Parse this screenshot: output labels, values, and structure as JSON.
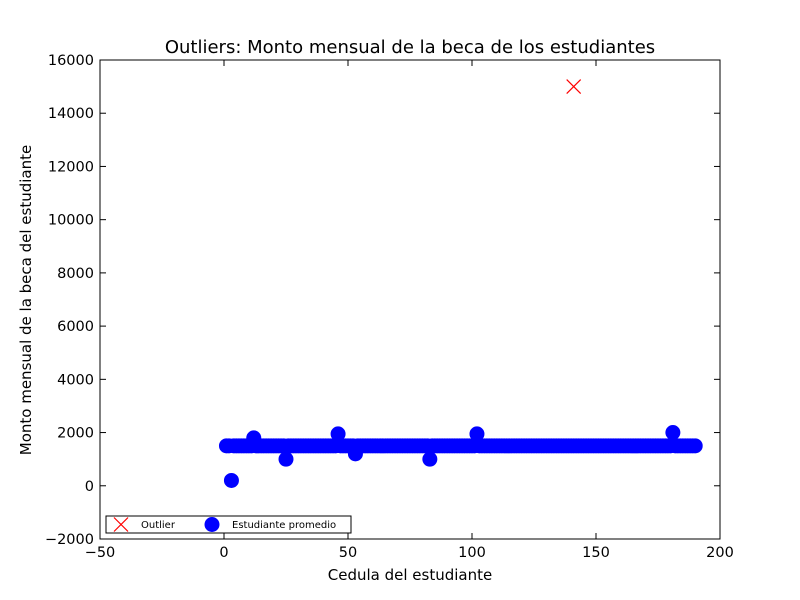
{
  "chart_data": {
    "type": "scatter",
    "title": "Outliers: Monto mensual de la beca de los estudiantes",
    "xlabel": "Cedula del estudiante",
    "ylabel": "Monto mensual de la beca del estudiante",
    "xlim": [
      -50,
      200
    ],
    "ylim": [
      -2000,
      16000
    ],
    "xticks": [
      -50,
      0,
      50,
      100,
      150,
      200
    ],
    "yticks": [
      -2000,
      0,
      2000,
      4000,
      6000,
      8000,
      10000,
      12000,
      14000,
      16000
    ],
    "xtick_labels": [
      "−50",
      "0",
      "50",
      "100",
      "150",
      "200"
    ],
    "ytick_labels": [
      "−2000",
      "0",
      "2000",
      "4000",
      "6000",
      "8000",
      "10000",
      "12000",
      "14000",
      "16000"
    ],
    "grid": false,
    "legend_position": "lower-left",
    "series": [
      {
        "name": "Outlier",
        "marker": "x",
        "color": "#ff0000",
        "points": [
          [
            141,
            15000
          ]
        ]
      },
      {
        "name": "Estudiante promedio",
        "marker": "o",
        "color": "#0000ff",
        "baseline": {
          "x_start": 1,
          "x_end": 190,
          "y": 1500
        },
        "points": [
          [
            3,
            200
          ],
          [
            12,
            1800
          ],
          [
            25,
            1000
          ],
          [
            46,
            1950
          ],
          [
            53,
            1200
          ],
          [
            83,
            1000
          ],
          [
            102,
            1950
          ],
          [
            181,
            2000
          ]
        ]
      }
    ]
  }
}
